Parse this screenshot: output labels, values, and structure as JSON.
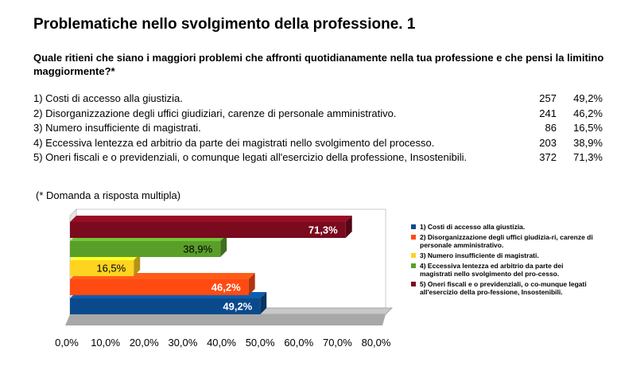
{
  "title": "Problematiche nello svolgimento della professione. 1",
  "question": "Quale ritieni che siano i maggiori problemi che affronti quotidianamente nella tua professione e che pensi la limitino maggiormente?*",
  "results": [
    {
      "label": "1) Costi di accesso alla giustizia.",
      "count": "257",
      "percent": "49,2%"
    },
    {
      "label": "2) Disorganizzazione degli uffici giudiziari, carenze di personale amministrativo.",
      "count": "241",
      "percent": "46,2%"
    },
    {
      "label": "3) Numero insufficiente di magistrati.",
      "count": "86",
      "percent": "16,5%"
    },
    {
      "label": "4) Eccessiva lentezza ed arbitrio da parte dei magistrati nello svolgimento del processo.",
      "count": "203",
      "percent": "38,9%"
    },
    {
      "label": "5) Oneri fiscali e o previdenziali, o comunque legati all'esercizio della professione, Insostenibili.",
      "count": "372",
      "percent": "71,3%"
    }
  ],
  "note": "(* Domanda a risposta multipla)",
  "legend": [
    {
      "text": "1) Costi di accesso alla giustizia.",
      "color": "#0a4a8c"
    },
    {
      "text": "2) Disorganizzazione degli uffici giudizia-ri, carenze di personale amministrativo.",
      "color": "#ff4a12"
    },
    {
      "text": "3) Numero insufficiente di magistrati.",
      "color": "#ffd421"
    },
    {
      "text": "4) Eccessiva lentezza ed arbitrio da parte dei magistrati nello svolgimento del pro-cesso.",
      "color": "#5a9e2a"
    },
    {
      "text": "5) Oneri fiscali e o previdenziali, o co-munque legati all'esercizio della pro-fessione, Insostenibili.",
      "color": "#7a0a1e"
    }
  ],
  "chart_data": {
    "type": "bar",
    "orientation": "horizontal",
    "categories": [
      "1",
      "2",
      "3",
      "4",
      "5"
    ],
    "values": [
      49.2,
      46.2,
      16.5,
      38.9,
      71.3
    ],
    "value_labels": [
      "49,2%",
      "46,2%",
      "16,5%",
      "38,9%",
      "71,3%"
    ],
    "colors": [
      "#0a4a8c",
      "#ff4a12",
      "#ffd421",
      "#5a9e2a",
      "#7a0a1e"
    ],
    "label_colors": [
      "#ffffff",
      "#ffffff",
      "#000000",
      "#000000",
      "#ffffff"
    ],
    "xlim": [
      0,
      80
    ],
    "xticks": [
      "0,0%",
      "10,0%",
      "20,0%",
      "30,0%",
      "40,0%",
      "50,0%",
      "60,0%",
      "70,0%",
      "80,0%"
    ],
    "grid": false,
    "legend_position": "right"
  }
}
